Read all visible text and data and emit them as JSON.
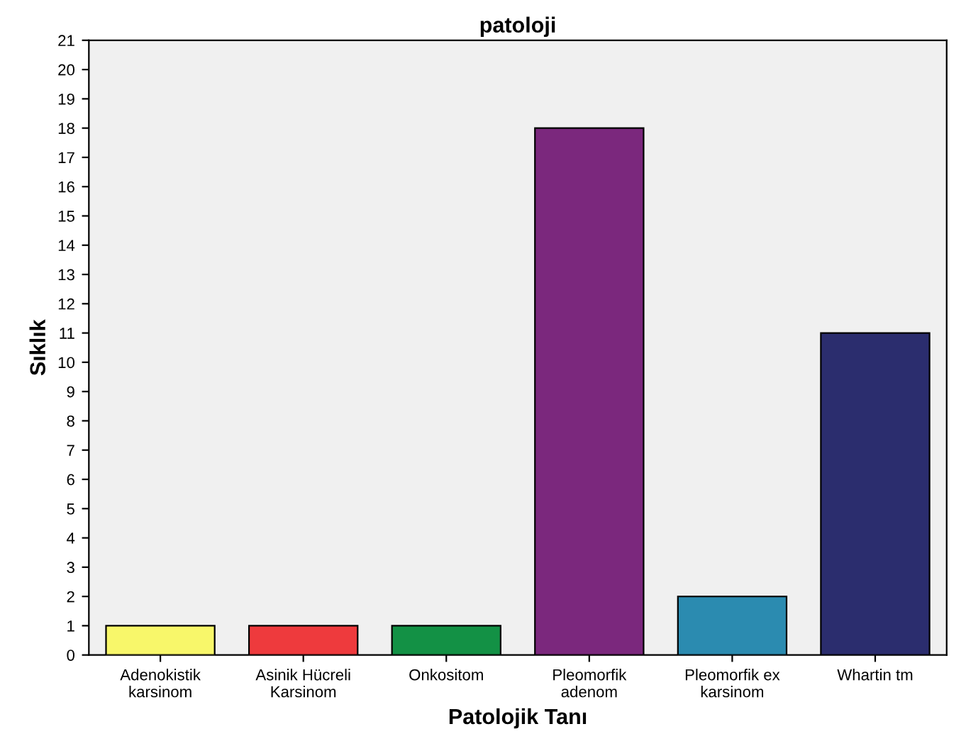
{
  "chart_data": {
    "type": "bar",
    "title": "patoloji",
    "xlabel": "Patolojik Tanı",
    "ylabel": "Sıklık",
    "categories": [
      "Adenokistik\nkarsinom",
      "Asinik Hücreli\nKarsinom",
      "Onkositom",
      "Pleomorfik\nadenom",
      "Pleomorfik ex\nkarsinom",
      "Whartin tm"
    ],
    "values": [
      1,
      1,
      1,
      18,
      2,
      11
    ],
    "colors": [
      "#f8f76a",
      "#ee3a3d",
      "#139145",
      "#7b287d",
      "#2b8bb0",
      "#2b2d6e"
    ],
    "ylim": [
      0,
      21
    ],
    "yticks": [
      0,
      1,
      2,
      3,
      4,
      5,
      6,
      7,
      8,
      9,
      10,
      11,
      12,
      13,
      14,
      15,
      16,
      17,
      18,
      19,
      20,
      21
    ],
    "grid": false
  }
}
